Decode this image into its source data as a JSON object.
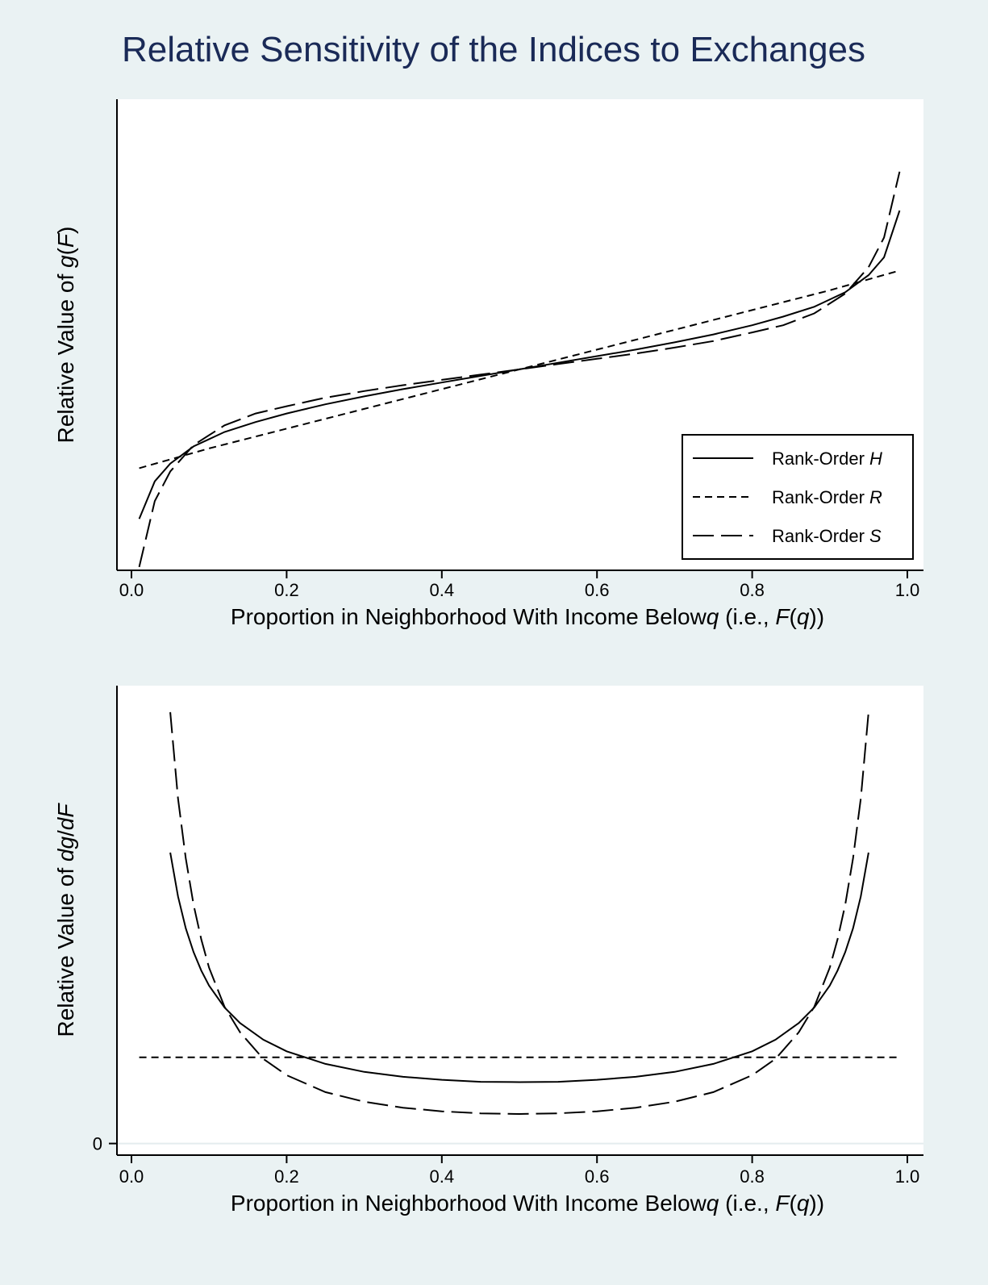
{
  "title": "Relative Sensitivity of the Indices to Exchanges",
  "chart_data": [
    {
      "type": "line",
      "panel": "top",
      "xlabel": "Proportion in Neighborhood With Income Below q (i.e., F(q))",
      "xlabel_parts": [
        "Proportion in Neighborhood With Income Below",
        "q",
        " (i.e., ",
        "F",
        "(",
        "q",
        "))"
      ],
      "ylabel": "Relative Value of g(F)",
      "ylabel_parts": [
        "Relative Value of ",
        "g",
        "(",
        "F",
        ")"
      ],
      "xlim": [
        0,
        1
      ],
      "ylim": [
        -3.05,
        4.1
      ],
      "x_ticks": [
        "0.0",
        "0.2",
        "0.4",
        "0.6",
        "0.8",
        "1.0"
      ],
      "y_ticks": [],
      "grid": false,
      "legend": {
        "position": "bottom-right",
        "entries": [
          {
            "label": "Rank-Order ",
            "italic": "H",
            "style": "solid"
          },
          {
            "label": "Rank-Order ",
            "italic": "R",
            "style": "short-dash"
          },
          {
            "label": "Rank-Order ",
            "italic": "S",
            "style": "long-dash"
          }
        ]
      },
      "series": [
        {
          "name": "Rank-Order H",
          "style": "solid",
          "x": [
            0.01,
            0.03,
            0.05,
            0.08,
            0.12,
            0.16,
            0.2,
            0.25,
            0.3,
            0.35,
            0.4,
            0.45,
            0.5,
            0.55,
            0.6,
            0.65,
            0.7,
            0.75,
            0.8,
            0.84,
            0.88,
            0.92,
            0.95,
            0.97,
            0.99
          ],
          "y": [
            -2.27,
            -1.7,
            -1.43,
            -1.17,
            -0.95,
            -0.8,
            -0.67,
            -0.53,
            -0.41,
            -0.3,
            -0.2,
            -0.1,
            0.0,
            0.1,
            0.2,
            0.3,
            0.41,
            0.53,
            0.67,
            0.8,
            0.95,
            1.17,
            1.43,
            1.7,
            2.41
          ]
        },
        {
          "name": "Rank-Order R",
          "style": "short-dash",
          "x": [
            0.01,
            0.1,
            0.2,
            0.3,
            0.4,
            0.5,
            0.6,
            0.7,
            0.8,
            0.9,
            0.99
          ],
          "y": [
            -1.5,
            -1.2,
            -0.9,
            -0.6,
            -0.3,
            0.0,
            0.3,
            0.6,
            0.9,
            1.2,
            1.5
          ]
        },
        {
          "name": "Rank-Order S",
          "style": "long-dash",
          "x": [
            0.01,
            0.03,
            0.05,
            0.08,
            0.12,
            0.16,
            0.2,
            0.25,
            0.3,
            0.35,
            0.4,
            0.45,
            0.5,
            0.55,
            0.6,
            0.65,
            0.7,
            0.75,
            0.8,
            0.84,
            0.88,
            0.92,
            0.95,
            0.97,
            0.99
          ],
          "y": [
            -3.0,
            -2.0,
            -1.55,
            -1.15,
            -0.85,
            -0.67,
            -0.56,
            -0.43,
            -0.33,
            -0.24,
            -0.16,
            -0.08,
            0.0,
            0.08,
            0.16,
            0.24,
            0.33,
            0.43,
            0.56,
            0.67,
            0.85,
            1.15,
            1.55,
            2.0,
            3.0
          ]
        }
      ]
    },
    {
      "type": "line",
      "panel": "bottom",
      "xlabel": "Proportion in Neighborhood With Income Below q (i.e., F(q))",
      "xlabel_parts": [
        "Proportion in Neighborhood With Income Below",
        "q",
        " (i.e., ",
        "F",
        "(",
        "q",
        "))"
      ],
      "ylabel": "Relative Value of dg/dF",
      "ylabel_parts": [
        "Relative Value of ",
        "dg",
        "/",
        "dF"
      ],
      "xlim": [
        0,
        1
      ],
      "ylim": [
        -0.35,
        13.8
      ],
      "x_ticks": [
        "0.0",
        "0.2",
        "0.4",
        "0.6",
        "0.8",
        "1.0"
      ],
      "y_ticks": [
        {
          "value": 0,
          "label": "0"
        }
      ],
      "grid": false,
      "series": [
        {
          "name": "Rank-Order H",
          "style": "solid",
          "x": [
            0.05,
            0.06,
            0.07,
            0.08,
            0.09,
            0.1,
            0.12,
            0.14,
            0.17,
            0.2,
            0.25,
            0.3,
            0.35,
            0.4,
            0.45,
            0.5,
            0.55,
            0.6,
            0.65,
            0.7,
            0.75,
            0.8,
            0.83,
            0.86,
            0.88,
            0.9,
            0.91,
            0.92,
            0.93,
            0.94,
            0.95
          ],
          "y": [
            8.77,
            7.45,
            6.49,
            5.77,
            5.21,
            4.76,
            4.1,
            3.63,
            3.13,
            2.78,
            2.4,
            2.16,
            2.01,
            1.92,
            1.86,
            1.85,
            1.86,
            1.92,
            2.01,
            2.16,
            2.4,
            2.78,
            3.13,
            3.63,
            4.1,
            4.76,
            5.21,
            5.77,
            6.49,
            7.45,
            8.77
          ]
        },
        {
          "name": "Rank-Order R",
          "style": "short-dash",
          "x": [
            0.01,
            0.99
          ],
          "y": [
            2.6,
            2.6
          ]
        },
        {
          "name": "Rank-Order S",
          "style": "long-dash",
          "x": [
            0.05,
            0.06,
            0.07,
            0.08,
            0.09,
            0.1,
            0.12,
            0.14,
            0.17,
            0.2,
            0.25,
            0.3,
            0.35,
            0.4,
            0.45,
            0.5,
            0.55,
            0.6,
            0.65,
            0.7,
            0.75,
            0.8,
            0.83,
            0.86,
            0.88,
            0.9,
            0.91,
            0.92,
            0.93,
            0.94,
            0.95
          ],
          "y": [
            13.0,
            10.4,
            8.6,
            7.2,
            6.15,
            5.3,
            4.12,
            3.35,
            2.55,
            2.06,
            1.55,
            1.26,
            1.08,
            0.97,
            0.91,
            0.89,
            0.91,
            0.97,
            1.08,
            1.26,
            1.55,
            2.06,
            2.55,
            3.35,
            4.12,
            5.3,
            6.15,
            7.2,
            8.6,
            10.4,
            13.0
          ]
        }
      ]
    }
  ]
}
